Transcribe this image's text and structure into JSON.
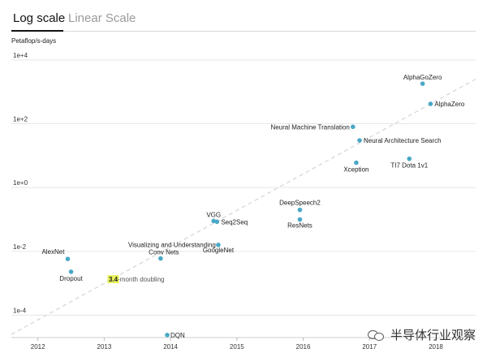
{
  "tabs": {
    "log_label": "Log scale",
    "linear_label": "Linear Scale"
  },
  "watermark": "半导体行业观察",
  "chart_data": {
    "type": "scatter",
    "ylabel": "Petaflop/s-days",
    "y_scale": "log",
    "ylim": [
      2e-05,
      20000
    ],
    "xlim": [
      2011.6,
      2018.6
    ],
    "x_ticks": [
      "2012",
      "2013",
      "2014",
      "2015",
      "2016",
      "2017",
      "2018"
    ],
    "y_ticks": [
      "1e+4",
      "1e+2",
      "1e+0",
      "1e-2",
      "1e-4"
    ],
    "grid": "horizontal",
    "point_color": "#4aa8c7",
    "points": [
      {
        "name": "AlexNet",
        "x": 2012.45,
        "y": 0.0058,
        "anchor": "end"
      },
      {
        "name": "Dropout",
        "x": 2012.5,
        "y": 0.0023,
        "anchor": "middle"
      },
      {
        "name": "DQN",
        "x": 2013.95,
        "y": 2.4e-05,
        "anchor": "start"
      },
      {
        "name": "Visualizing and Understanding Conv Nets",
        "x": 2013.85,
        "y": 0.006,
        "anchor": "middle"
      },
      {
        "name": "VGG",
        "x": 2014.65,
        "y": 0.09,
        "anchor": "middle"
      },
      {
        "name": "Seq2Seq",
        "x": 2014.7,
        "y": 0.085,
        "anchor": "start"
      },
      {
        "name": "GoogleNet",
        "x": 2014.72,
        "y": 0.016,
        "anchor": "middle"
      },
      {
        "name": "DeepSpeech2",
        "x": 2015.95,
        "y": 0.2,
        "anchor": "middle"
      },
      {
        "name": "ResNets",
        "x": 2015.95,
        "y": 0.1,
        "anchor": "middle"
      },
      {
        "name": "Neural Machine Translation",
        "x": 2016.75,
        "y": 80,
        "anchor": "end"
      },
      {
        "name": "Neural Architecture Search",
        "x": 2016.85,
        "y": 30,
        "anchor": "start"
      },
      {
        "name": "Xception",
        "x": 2016.8,
        "y": 6,
        "anchor": "middle"
      },
      {
        "name": "TI7 Dota 1v1",
        "x": 2017.6,
        "y": 8,
        "anchor": "middle"
      },
      {
        "name": "AlphaGoZero",
        "x": 2017.8,
        "y": 1800,
        "anchor": "middle"
      },
      {
        "name": "AlphaZero",
        "x": 2017.92,
        "y": 420,
        "anchor": "start"
      }
    ],
    "trend_line": {
      "x": [
        2011.6,
        2018.6
      ],
      "y": [
        2.5e-05,
        2500
      ]
    },
    "annotation": {
      "highlight": "3.4",
      "text": "-month doubling"
    }
  }
}
